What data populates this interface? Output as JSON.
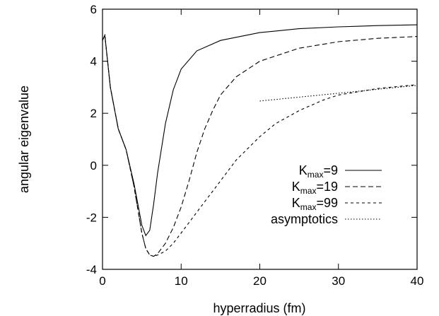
{
  "chart_data": {
    "type": "line",
    "xlabel": "hyperradius (fm)",
    "ylabel": "angular eigenvalue",
    "xlim": [
      0,
      40
    ],
    "ylim": [
      -4,
      6
    ],
    "x_ticks": [
      0,
      10,
      20,
      30,
      40
    ],
    "y_ticks": [
      -4,
      -2,
      0,
      2,
      4,
      6
    ],
    "x_tick_labels": [
      "0",
      "10",
      "20",
      "30",
      "40"
    ],
    "y_tick_labels": [
      "-4",
      "-2",
      "0",
      "2",
      "4",
      "6"
    ],
    "grid": false,
    "legend_position": "lower-right",
    "series": [
      {
        "name": "K",
        "name_subscript": "max",
        "name_suffix": "=9",
        "dash": "solid",
        "x": [
          0,
          0.3,
          1,
          2,
          3,
          4,
          4.5,
          5,
          5.5,
          6,
          6.5,
          7,
          8,
          9,
          10,
          12,
          15,
          20,
          25,
          30,
          35,
          40
        ],
        "y": [
          4.8,
          5.0,
          3.0,
          1.4,
          0.6,
          -0.7,
          -1.5,
          -2.3,
          -2.7,
          -2.5,
          -1.5,
          -0.3,
          1.6,
          2.9,
          3.7,
          4.4,
          4.8,
          5.1,
          5.25,
          5.32,
          5.37,
          5.4
        ]
      },
      {
        "name": "K",
        "name_subscript": "max",
        "name_suffix": "=19",
        "dash": "long-dash",
        "x": [
          0,
          0.3,
          1,
          2,
          3,
          4,
          5,
          5.5,
          6,
          6.5,
          7,
          8,
          9,
          10,
          11,
          12,
          13,
          14,
          15,
          17,
          20,
          25,
          30,
          35,
          40
        ],
        "y": [
          4.8,
          5.0,
          3.0,
          1.4,
          0.6,
          -0.8,
          -2.6,
          -3.2,
          -3.45,
          -3.5,
          -3.4,
          -3.0,
          -2.4,
          -1.6,
          -0.6,
          0.5,
          1.4,
          2.1,
          2.7,
          3.4,
          4.0,
          4.5,
          4.75,
          4.88,
          4.95
        ]
      },
      {
        "name": "K",
        "name_subscript": "max",
        "name_suffix": "=99",
        "dash": "short-dash",
        "x": [
          0,
          0.3,
          1,
          2,
          3,
          4,
          5,
          5.5,
          6,
          6.5,
          7,
          8,
          9,
          10,
          11,
          12,
          13,
          14,
          15,
          17,
          20,
          22,
          25,
          28,
          30,
          35,
          40
        ],
        "y": [
          4.8,
          5.0,
          3.0,
          1.4,
          0.6,
          -0.8,
          -2.6,
          -3.2,
          -3.45,
          -3.5,
          -3.45,
          -3.3,
          -3.0,
          -2.6,
          -2.2,
          -1.8,
          -1.4,
          -1.0,
          -0.6,
          0.2,
          1.1,
          1.6,
          2.1,
          2.5,
          2.7,
          2.95,
          3.1
        ]
      },
      {
        "name": "asymptotics",
        "dash": "dotted",
        "x": [
          20,
          25,
          30,
          35,
          40
        ],
        "y": [
          2.47,
          2.62,
          2.77,
          2.92,
          3.07
        ]
      }
    ]
  }
}
